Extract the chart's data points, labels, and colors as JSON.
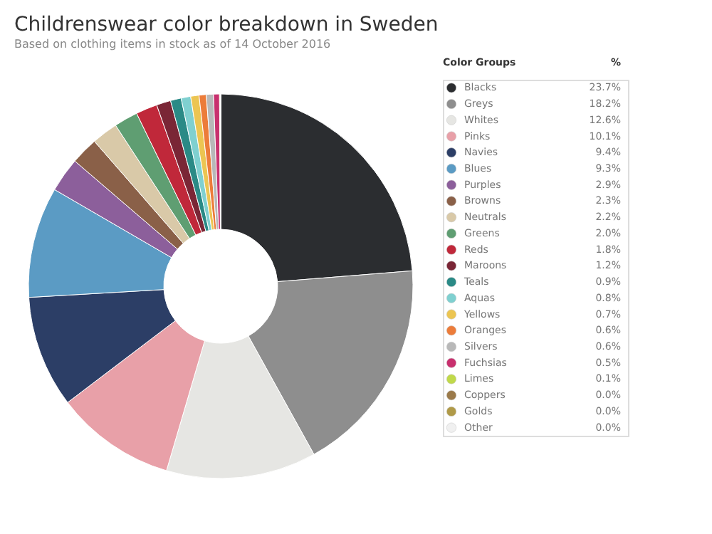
{
  "chart_data": {
    "type": "donut",
    "title": "Childrenswear color breakdown in Sweden",
    "subtitle": "Based on clothing items in stock as of 14 October 2016",
    "legend_title": "Color Groups",
    "annotations": [
      "%"
    ],
    "legend": "right",
    "categories": [
      "Blacks",
      "Greys",
      "Whites",
      "Pinks",
      "Navies",
      "Blues",
      "Purples",
      "Browns",
      "Neutrals",
      "Greens",
      "Reds",
      "Maroons",
      "Teals",
      "Aquas",
      "Yellows",
      "Oranges",
      "Silvers",
      "Fuchsias",
      "Limes",
      "Coppers",
      "Golds",
      "Other"
    ],
    "values": [
      23.7,
      18.2,
      12.6,
      10.1,
      9.4,
      9.3,
      2.9,
      2.3,
      2.2,
      2.0,
      1.8,
      1.2,
      0.9,
      0.8,
      0.7,
      0.6,
      0.6,
      0.5,
      0.1,
      0.0,
      0.0,
      0.0
    ],
    "value_labels": [
      "23.7%",
      "18.2%",
      "12.6%",
      "10.1%",
      "9.4%",
      "9.3%",
      "2.9%",
      "2.3%",
      "2.2%",
      "2.0%",
      "1.8%",
      "1.2%",
      "0.9%",
      "0.8%",
      "0.7%",
      "0.6%",
      "0.6%",
      "0.5%",
      "0.1%",
      "0.0%",
      "0.0%",
      "0.0%"
    ],
    "colors": [
      "#2b2d30",
      "#8e8e8e",
      "#e6e6e3",
      "#e8a0a8",
      "#2c3e66",
      "#5b9bc4",
      "#8c5f9b",
      "#8a6048",
      "#d9c9a8",
      "#5f9e72",
      "#c0283a",
      "#7a2636",
      "#2a8a86",
      "#7fd0d0",
      "#ecc552",
      "#ec7c3a",
      "#b8b8b8",
      "#c8306e",
      "#c0d94a",
      "#9b7a4a",
      "#b09a48",
      "#f0f0f0"
    ]
  }
}
